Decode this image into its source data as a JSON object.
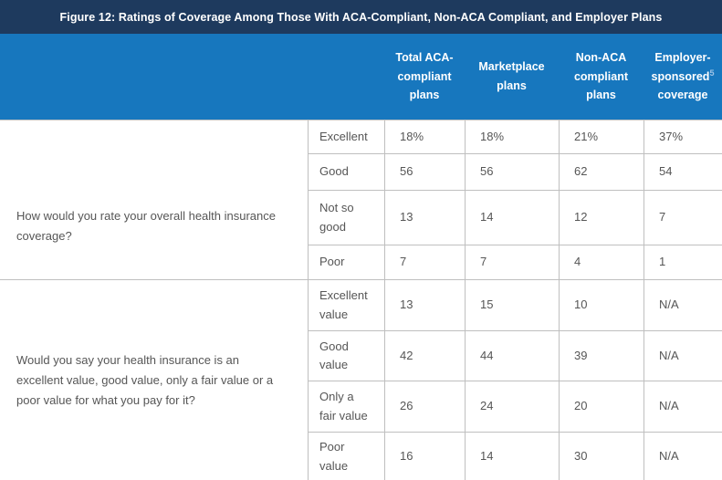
{
  "title": "Figure 12: Ratings of Coverage Among Those With ACA-Compliant, Non-ACA Compliant, and Employer Plans",
  "colors": {
    "title_bar_bg": "#1e3a5e",
    "header_bg": "#1777be",
    "header_text": "#ffffff",
    "footnote_marker": "#9dc3e6",
    "body_text": "#565656",
    "border": "#bfbfbf"
  },
  "employer_header": {
    "part1": "Employer-sponsored",
    "footnote": "5",
    "part2": "coverage"
  },
  "chart_data": {
    "type": "table",
    "title": "Figure 12: Ratings of Coverage Among Those With ACA-Compliant, Non-ACA Compliant, and Employer Plans",
    "columns": [
      "Total ACA-compliant plans",
      "Marketplace plans",
      "Non-ACA compliant plans",
      "Employer-sponsored coverage"
    ],
    "sections": [
      {
        "question": "How would you rate your overall health insurance coverage?",
        "rows": [
          {
            "label": "Excellent",
            "values": [
              "18%",
              "18%",
              "21%",
              "37%"
            ]
          },
          {
            "label": "Good",
            "values": [
              "56",
              "56",
              "62",
              "54"
            ]
          },
          {
            "label": "Not so good",
            "values": [
              "13",
              "14",
              "12",
              "7"
            ]
          },
          {
            "label": "Poor",
            "values": [
              "7",
              "7",
              "4",
              "1"
            ]
          }
        ]
      },
      {
        "question": "Would you say your health insurance is an excellent value, good value, only a fair value or a poor value for what you pay for it?",
        "rows": [
          {
            "label": "Excellent value",
            "values": [
              "13",
              "15",
              "10",
              "N/A"
            ]
          },
          {
            "label": "Good value",
            "values": [
              "42",
              "44",
              "39",
              "N/A"
            ]
          },
          {
            "label": "Only a fair value",
            "values": [
              "26",
              "24",
              "20",
              "N/A"
            ]
          },
          {
            "label": "Poor value",
            "values": [
              "16",
              "14",
              "30",
              "N/A"
            ]
          }
        ]
      }
    ]
  }
}
